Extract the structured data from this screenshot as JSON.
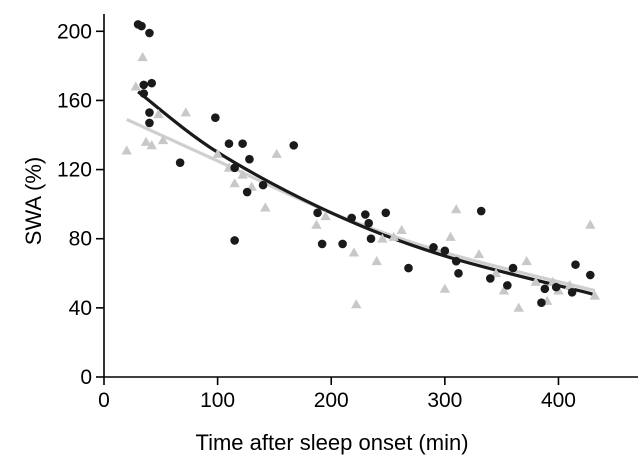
{
  "chart_data": {
    "type": "scatter",
    "xlabel": "Time after sleep onset (min)",
    "ylabel": "SWA (%)",
    "xlim": [
      0,
      470
    ],
    "ylim": [
      0,
      210
    ],
    "xticks": [
      0,
      100,
      200,
      300,
      400
    ],
    "yticks": [
      0,
      40,
      80,
      120,
      160,
      200
    ],
    "grid": false,
    "series": [
      {
        "marker": "circle",
        "color": "#1a1a1a",
        "points": [
          [
            30,
            204
          ],
          [
            33,
            203
          ],
          [
            40,
            199
          ],
          [
            35,
            169
          ],
          [
            42,
            170
          ],
          [
            35,
            164
          ],
          [
            40,
            153
          ],
          [
            40,
            147
          ],
          [
            67,
            124
          ],
          [
            98,
            150
          ],
          [
            110,
            135
          ],
          [
            115,
            121
          ],
          [
            122,
            135
          ],
          [
            128,
            126
          ],
          [
            126,
            107
          ],
          [
            140,
            111
          ],
          [
            115,
            79
          ],
          [
            167,
            134
          ],
          [
            188,
            95
          ],
          [
            192,
            77
          ],
          [
            210,
            77
          ],
          [
            218,
            92
          ],
          [
            230,
            94
          ],
          [
            233,
            89
          ],
          [
            235,
            80
          ],
          [
            248,
            95
          ],
          [
            268,
            63
          ],
          [
            290,
            75
          ],
          [
            300,
            73
          ],
          [
            310,
            67
          ],
          [
            312,
            60
          ],
          [
            332,
            96
          ],
          [
            340,
            57
          ],
          [
            355,
            53
          ],
          [
            360,
            63
          ],
          [
            385,
            43
          ],
          [
            388,
            51
          ],
          [
            398,
            52
          ],
          [
            412,
            49
          ],
          [
            415,
            65
          ],
          [
            428,
            59
          ]
        ],
        "fit": [
          [
            30,
            165
          ],
          [
            100,
            130
          ],
          [
            200,
            95
          ],
          [
            300,
            70
          ],
          [
            430,
            48
          ]
        ]
      },
      {
        "marker": "triangle",
        "color": "#c8c8c8",
        "points": [
          [
            20,
            131
          ],
          [
            28,
            168
          ],
          [
            34,
            185
          ],
          [
            37,
            136
          ],
          [
            42,
            134
          ],
          [
            48,
            152
          ],
          [
            52,
            137
          ],
          [
            72,
            153
          ],
          [
            100,
            129
          ],
          [
            110,
            121
          ],
          [
            115,
            112
          ],
          [
            122,
            117
          ],
          [
            130,
            110
          ],
          [
            142,
            98
          ],
          [
            152,
            129
          ],
          [
            187,
            88
          ],
          [
            195,
            93
          ],
          [
            220,
            72
          ],
          [
            222,
            42
          ],
          [
            240,
            67
          ],
          [
            245,
            80
          ],
          [
            255,
            81
          ],
          [
            262,
            85
          ],
          [
            300,
            51
          ],
          [
            305,
            81
          ],
          [
            310,
            97
          ],
          [
            330,
            71
          ],
          [
            345,
            60
          ],
          [
            352,
            50
          ],
          [
            365,
            40
          ],
          [
            372,
            67
          ],
          [
            380,
            55
          ],
          [
            390,
            44
          ],
          [
            395,
            55
          ],
          [
            400,
            50
          ],
          [
            410,
            53
          ],
          [
            428,
            88
          ],
          [
            432,
            47
          ]
        ],
        "fit": [
          [
            20,
            149
          ],
          [
            100,
            125
          ],
          [
            200,
            95
          ],
          [
            300,
            72
          ],
          [
            432,
            50
          ]
        ]
      }
    ]
  }
}
